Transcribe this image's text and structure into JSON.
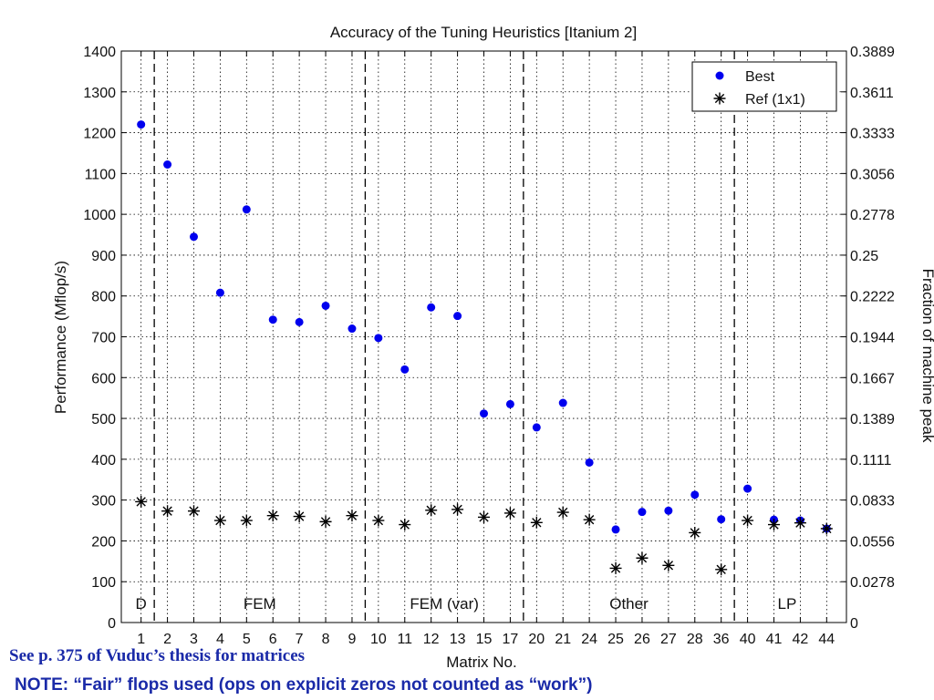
{
  "chart_data": {
    "type": "scatter",
    "title": "Accuracy of the Tuning Heuristics [Itanium 2]",
    "xlabel": "Matrix No.",
    "ylabel": "Performance (Mflop/s)",
    "ylabel_right": "Fraction of machine peak",
    "categories": [
      "1",
      "2",
      "3",
      "4",
      "5",
      "6",
      "7",
      "8",
      "9",
      "10",
      "11",
      "12",
      "13",
      "15",
      "17",
      "20",
      "21",
      "24",
      "25",
      "26",
      "27",
      "28",
      "36",
      "40",
      "41",
      "42",
      "44"
    ],
    "ylim": [
      0,
      1400
    ],
    "yticks": [
      0,
      100,
      200,
      300,
      400,
      500,
      600,
      700,
      800,
      900,
      1000,
      1100,
      1200,
      1300,
      1400
    ],
    "yticks_right": [
      "0",
      "0.0278",
      "0.0556",
      "0.0833",
      "0.1111",
      "0.1389",
      "0.1667",
      "0.1944",
      "0.2222",
      "0.25",
      "0.2778",
      "0.3056",
      "0.3333",
      "0.3611",
      "0.3889"
    ],
    "grid": true,
    "legend_position": "top-right",
    "series": [
      {
        "name": "Best",
        "marker": "dot",
        "color": "#0000ee",
        "values": [
          1220,
          1122,
          945,
          808,
          1012,
          742,
          736,
          776,
          720,
          697,
          620,
          772,
          751,
          512,
          535,
          478,
          538,
          392,
          228,
          271,
          274,
          313,
          253,
          328,
          252,
          250,
          230
        ]
      },
      {
        "name": "Ref (1x1)",
        "marker": "star",
        "color": "#000000",
        "values": [
          296,
          273,
          273,
          250,
          250,
          262,
          260,
          247,
          262,
          250,
          240,
          275,
          277,
          258,
          268,
          245,
          270,
          252,
          133,
          158,
          140,
          220,
          130,
          250,
          240,
          244,
          230
        ]
      }
    ],
    "regions": [
      {
        "label": "D",
        "from_index": 0,
        "to_index": 0
      },
      {
        "label": "FEM",
        "from_index": 1,
        "to_index": 8
      },
      {
        "label": "FEM (var)",
        "from_index": 9,
        "to_index": 14
      },
      {
        "label": "Other",
        "from_index": 15,
        "to_index": 22
      },
      {
        "label": "LP",
        "from_index": 23,
        "to_index": 26
      }
    ]
  },
  "captions": {
    "reference": "See p. 375 of Vuduc’s thesis for matrices",
    "note": "NOTE: “Fair” flops used (ops on explicit zeros not counted as “work”)"
  }
}
